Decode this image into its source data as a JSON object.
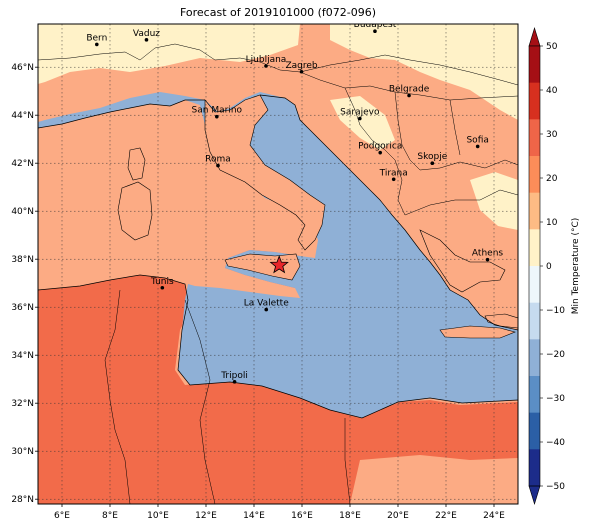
{
  "title": "Forecast of 2019101000 (f072-096)",
  "map": {
    "lon_range": [
      5,
      25
    ],
    "lat_range": [
      27.8,
      47.8
    ],
    "lon_ticks": [
      "6°E",
      "8°E",
      "10°E",
      "12°E",
      "14°E",
      "16°E",
      "18°E",
      "20°E",
      "22°E",
      "24°E"
    ],
    "lat_ticks": [
      "28°N",
      "30°N",
      "32°N",
      "34°N",
      "36°N",
      "38°N",
      "40°N",
      "42°N",
      "44°N",
      "46°N"
    ],
    "sea_color": "#8fb0d6",
    "cities": [
      {
        "name": "Bern",
        "lon": 7.45,
        "lat": 46.95
      },
      {
        "name": "Vaduz",
        "lon": 9.52,
        "lat": 47.14
      },
      {
        "name": "Budapest",
        "lon": 19.04,
        "lat": 47.5
      },
      {
        "name": "Ljubljana",
        "lon": 14.5,
        "lat": 46.05
      },
      {
        "name": "Zagreb",
        "lon": 15.98,
        "lat": 45.81
      },
      {
        "name": "San Marino",
        "lon": 12.45,
        "lat": 43.94
      },
      {
        "name": "Belgrade",
        "lon": 20.46,
        "lat": 44.82
      },
      {
        "name": "Sarajevo",
        "lon": 18.41,
        "lat": 43.86
      },
      {
        "name": "Sofia",
        "lon": 23.32,
        "lat": 42.7
      },
      {
        "name": "Roma",
        "lon": 12.5,
        "lat": 41.9
      },
      {
        "name": "Podgorica",
        "lon": 19.26,
        "lat": 42.44
      },
      {
        "name": "Skopje",
        "lon": 21.43,
        "lat": 42.0
      },
      {
        "name": "Tirana",
        "lon": 19.82,
        "lat": 41.33
      },
      {
        "name": "Athens",
        "lon": 23.73,
        "lat": 37.98
      },
      {
        "name": "Tunis",
        "lon": 10.18,
        "lat": 36.81
      },
      {
        "name": "La Valette",
        "lon": 14.51,
        "lat": 35.9
      },
      {
        "name": "Tripoli",
        "lon": 13.19,
        "lat": 32.89
      }
    ],
    "marker": {
      "lon": 15.05,
      "lat": 37.75,
      "color": "#e8262a"
    }
  },
  "colorbar": {
    "label": "Min Temperature (°C)",
    "ticks": [
      "50",
      "40",
      "30",
      "20",
      "10",
      "0",
      "−10",
      "−20",
      "−30",
      "−40",
      "−50"
    ],
    "colors": [
      "#a50f15",
      "#d7301f",
      "#ef6548",
      "#fc8d59",
      "#fdbb84",
      "#fff2c8",
      "#eef7fb",
      "#c6dbef",
      "#8fb0d6",
      "#5b8ec5",
      "#2b5fa6",
      "#1c2c8a"
    ]
  }
}
